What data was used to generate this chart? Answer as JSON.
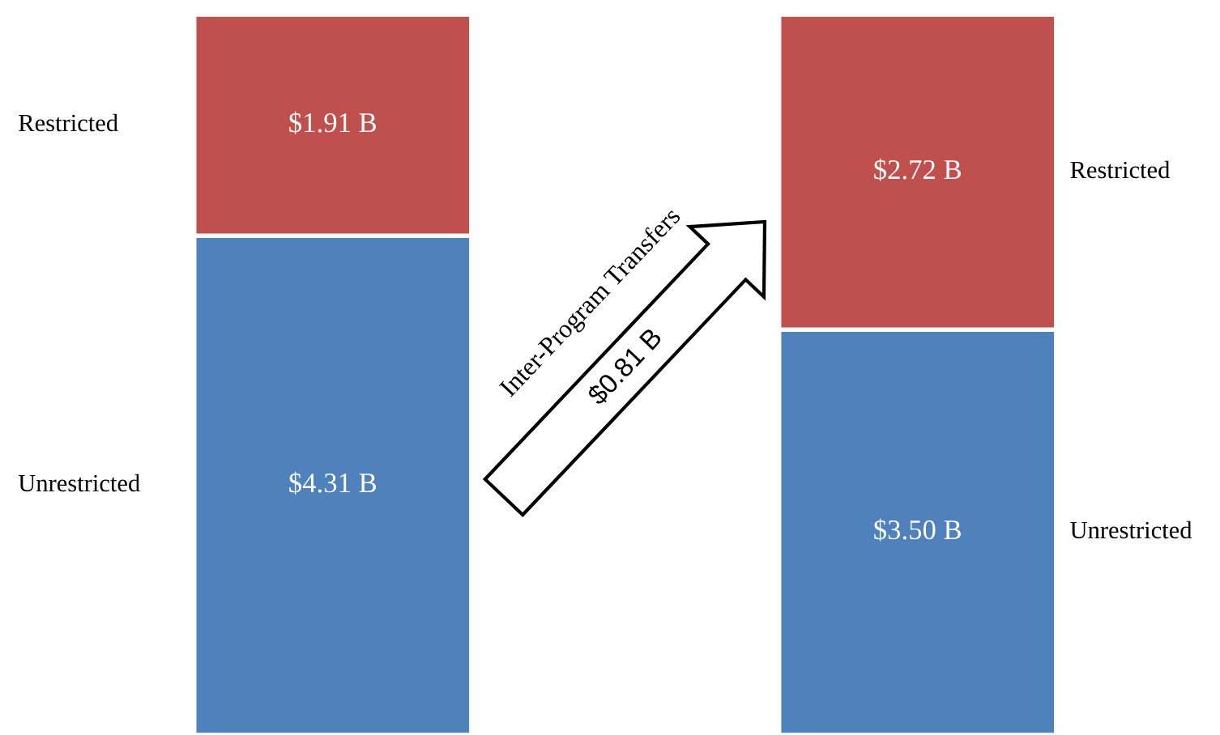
{
  "chart_data": {
    "type": "bar",
    "stacked": true,
    "categories": [
      null,
      null
    ],
    "series": [
      {
        "name": "Unrestricted",
        "color": "#4f81bd",
        "values": [
          4.31,
          3.5
        ],
        "value_labels": [
          "$4.31 B",
          "$3.50 B"
        ]
      },
      {
        "name": "Restricted",
        "color": "#c0504d",
        "values": [
          1.91,
          2.72
        ],
        "value_labels": [
          "$1.91 B",
          "$2.72 B"
        ]
      }
    ],
    "annotations": [
      "Inter-Program Transfers",
      "$0.81 B"
    ],
    "tick_labels": false
  }
}
